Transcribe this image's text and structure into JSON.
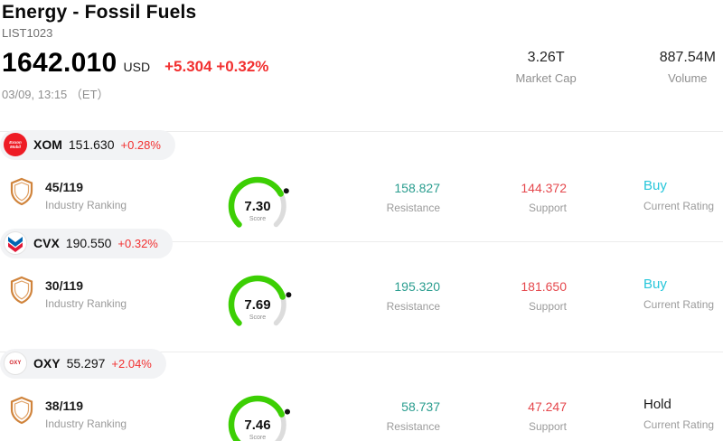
{
  "header": {
    "title": "Energy - Fossil Fuels",
    "list_id": "LIST1023",
    "price": "1642.010",
    "currency": "USD",
    "change": "+5.304 +0.32%",
    "datetime": "03/09, 13:15 （ET）",
    "market_cap_value": "3.26T",
    "market_cap_label": "Market Cap",
    "volume_value": "887.54M",
    "volume_label": "Volume"
  },
  "labels": {
    "industry_ranking": "Industry Ranking",
    "score": "Score",
    "resistance": "Resistance",
    "support": "Support",
    "current_rating": "Current Rating"
  },
  "colors": {
    "change_red": "#f23030",
    "resistance_teal": "#2a9d8f",
    "support_red": "#e5484d",
    "buy_cyan": "#26c6da",
    "hold_black": "#1a1a1a",
    "gauge_green": "#3ccf04",
    "shield_orange": "#d0843c"
  },
  "stocks": [
    {
      "ticker": "XOM",
      "price": "151.630",
      "change": "+0.28%",
      "logo_label": "Exxon Mobil",
      "logo_bg": "#ee1c25",
      "ranking": "45/119",
      "score": "7.30",
      "resistance": "158.827",
      "support": "144.372",
      "rating": "Buy",
      "rating_color": "#26c6da"
    },
    {
      "ticker": "CVX",
      "price": "190.550",
      "change": "+0.32%",
      "logo_label": "Chevron",
      "logo_chevron_blue": "#0066b2",
      "logo_chevron_red": "#e21836",
      "ranking": "30/119",
      "score": "7.69",
      "resistance": "195.320",
      "support": "181.650",
      "rating": "Buy",
      "rating_color": "#26c6da"
    },
    {
      "ticker": "OXY",
      "price": "55.297",
      "change": "+2.04%",
      "logo_label": "OXY",
      "logo_text_color": "#d2232a",
      "ranking": "38/119",
      "score": "7.46",
      "resistance": "58.737",
      "support": "47.247",
      "rating": "Hold",
      "rating_color": "#1a1a1a"
    }
  ]
}
